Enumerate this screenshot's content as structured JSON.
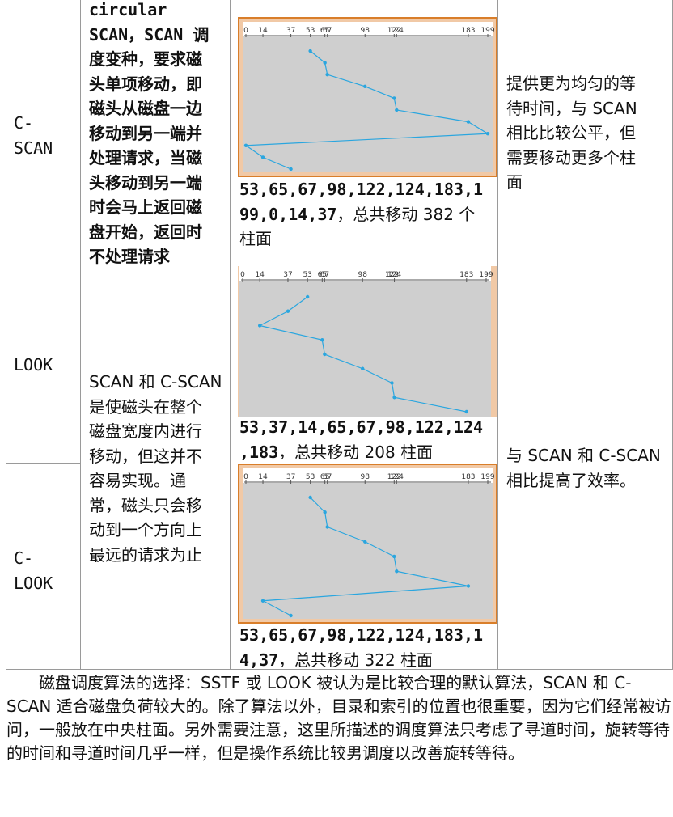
{
  "rows": [
    {
      "name": "C-\nSCAN",
      "description": "circular\nSCAN，SCAN 调\n度变种，要求磁\n头单项移动，即\n磁头从磁盘一边\n移动到另一端并\n处理请求，当磁\n头移动到另一端\n时会马上返回磁\n盘开始，返回时\n不处理请求",
      "sequence": "53,65,67,98,122,124,183,1\n99,0,14,37",
      "total": "，总共移动 382 个\n柱面",
      "chart_data": {
        "type": "line",
        "tick_labels": [
          "0",
          "14",
          "37",
          "53",
          "65",
          "67",
          "98",
          "122",
          "124",
          "183",
          "199"
        ],
        "x_values": [
          53,
          65,
          67,
          98,
          122,
          124,
          183,
          199,
          0,
          14,
          37
        ],
        "xlim": [
          0,
          199
        ]
      },
      "evaluation": "提供更为均匀的等\n待时间，与 SCAN\n相比比较公平，但\n需要移动更多个柱\n面"
    },
    {
      "name": "LOOK",
      "sequence": ",183",
      "sequence_head": "53,37,14,65,67,98,122,124",
      "total": "，总共移动 208 柱面",
      "chart_data": {
        "type": "line",
        "tick_labels": [
          "0",
          "14",
          "37",
          "53",
          "65",
          "67",
          "98",
          "122",
          "124",
          "183",
          "199"
        ],
        "x_values": [
          53,
          37,
          14,
          65,
          67,
          98,
          122,
          124,
          183
        ],
        "xlim": [
          0,
          199
        ]
      }
    },
    {
      "name": "C-\nLOOK",
      "sequence": "53,65,67,98,122,124,183,1\n4,37",
      "total": "，总共移动 322 柱面",
      "chart_data": {
        "type": "line",
        "tick_labels": [
          "0",
          "14",
          "37",
          "53",
          "65",
          "67",
          "98",
          "122",
          "124",
          "183",
          "199"
        ],
        "x_values": [
          53,
          65,
          67,
          98,
          122,
          124,
          183,
          14,
          37
        ],
        "xlim": [
          0,
          199
        ]
      }
    }
  ],
  "shared_description": "SCAN 和 C-SCAN\n是使磁头在整个\n磁盘宽度内进行\n移动，但这并不\n容易实现。通\n常，磁头只会移\n动到一个方向上\n最远的请求为止",
  "shared_evaluation": "与 SCAN 和 C-SCAN\n相比提高了效率。",
  "paragraph": "磁盘调度算法的选择：SSTF 或 LOOK 被认为是比较合理的默认算法，SCAN 和 C-SCAN 适合磁盘负荷较大的。除了算法以外，目录和索引的位置也很重要，因为它们经常被访问，一般放在中央柱面。另外需要注意，这里所描述的调度算法只考虑了寻道时间，旋转等待的时间和寻道时间几乎一样，但是操作系统比较男调度以改善旋转等待。",
  "colors": {
    "chart_border": "#d97e2a",
    "chart_bg": "#cfcfcf",
    "line": "#2aa6df"
  }
}
